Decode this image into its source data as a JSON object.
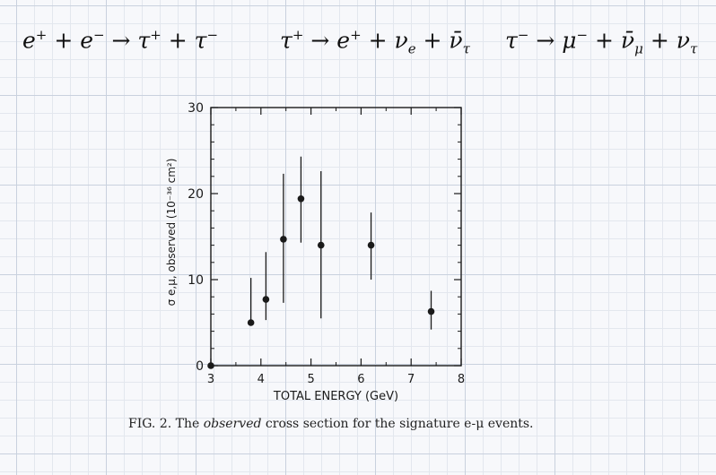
{
  "equations": {
    "eq1": "e⁺ + e⁻ → τ⁺ + τ⁻",
    "eq2": "τ⁺ → e⁺ + νₑ + ν̄τ",
    "eq3": "τ⁻ → μ⁻ + ν̄μ + ντ"
  },
  "caption": {
    "figure_label": "FIG. 2.",
    "text_before": "The",
    "emphasis": "observed",
    "text_after": "cross section for the signature e-μ events."
  },
  "chart_data": {
    "type": "scatter",
    "xlabel": "TOTAL ENERGY (GeV)",
    "ylabel": "σ e,μ, observed (10⁻³⁶ cm²)",
    "xlim": [
      3,
      8
    ],
    "ylim": [
      0,
      30
    ],
    "xticks": [
      3,
      4,
      5,
      6,
      7,
      8
    ],
    "yticks": [
      0,
      10,
      20,
      30
    ],
    "grid": false,
    "points": [
      {
        "x": 3.0,
        "y": 0.0,
        "err_low": 0.0,
        "err_high": 0.0
      },
      {
        "x": 3.8,
        "y": 5.0,
        "err_low": 5.0,
        "err_high": 10.2
      },
      {
        "x": 4.1,
        "y": 7.7,
        "err_low": 5.3,
        "err_high": 13.2
      },
      {
        "x": 4.45,
        "y": 14.7,
        "err_low": 7.3,
        "err_high": 22.3
      },
      {
        "x": 4.8,
        "y": 19.4,
        "err_low": 14.3,
        "err_high": 24.3
      },
      {
        "x": 5.2,
        "y": 14.0,
        "err_low": 5.5,
        "err_high": 22.6
      },
      {
        "x": 6.2,
        "y": 14.0,
        "err_low": 10.0,
        "err_high": 17.8
      },
      {
        "x": 7.4,
        "y": 6.3,
        "err_low": 4.2,
        "err_high": 8.7
      }
    ]
  }
}
